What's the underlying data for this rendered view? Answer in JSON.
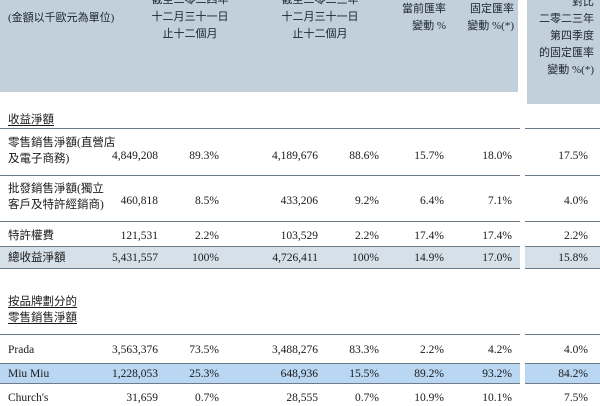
{
  "header": {
    "unit_note": "(金額以千歐元為單位)",
    "period_2024": [
      "截至二零二四年",
      "十二月三十一日",
      "止十二個月"
    ],
    "period_2023": [
      "截至二零二三年",
      "十二月三十一日",
      "止十二個月"
    ],
    "fx_current": [
      "當前匯率",
      "變動 %"
    ],
    "fx_constant": [
      "固定匯率",
      "變動 %(*)"
    ],
    "q4_constant": [
      "對比",
      "二零二三年",
      "第四季度",
      "的固定匯率",
      "變動 %(*)"
    ]
  },
  "sections": {
    "revenue_title": "收益淨額",
    "brand_title": [
      "按品牌劃分的",
      "零售銷售淨額"
    ]
  },
  "rows": [
    {
      "label": [
        "零售銷售淨額(直營店",
        "及電子商務)"
      ],
      "v2024": "4,849,208",
      "p2024": "89.3%",
      "v2023": "4,189,676",
      "p2023": "88.6%",
      "cur": "15.7%",
      "const": "18.0%",
      "q4": "17.5%"
    },
    {
      "label": [
        "批發銷售淨額(獨立",
        "客戶及特許經銷商)"
      ],
      "v2024": "460,818",
      "p2024": "8.5%",
      "v2023": "433,206",
      "p2023": "9.2%",
      "cur": "6.4%",
      "const": "7.1%",
      "q4": "4.0%"
    },
    {
      "label": [
        "特許權費"
      ],
      "v2024": "121,531",
      "p2024": "2.2%",
      "v2023": "103,529",
      "p2023": "2.2%",
      "cur": "17.4%",
      "const": "17.4%",
      "q4": "2.2%"
    },
    {
      "label": [
        "總收益淨額"
      ],
      "v2024": "5,431,557",
      "p2024": "100%",
      "v2023": "4,726,411",
      "p2023": "100%",
      "cur": "14.9%",
      "const": "17.0%",
      "q4": "15.8%"
    },
    {
      "label": [
        "Prada"
      ],
      "v2024": "3,563,376",
      "p2024": "73.5%",
      "v2023": "3,488,276",
      "p2023": "83.3%",
      "cur": "2.2%",
      "const": "4.2%",
      "q4": "4.0%"
    },
    {
      "label": [
        "Miu Miu"
      ],
      "v2024": "1,228,053",
      "p2024": "25.3%",
      "v2023": "648,936",
      "p2023": "15.5%",
      "cur": "89.2%",
      "const": "93.2%",
      "q4": "84.2%"
    },
    {
      "label": [
        "Church's"
      ],
      "v2024": "31,659",
      "p2024": "0.7%",
      "v2023": "28,555",
      "p2023": "0.7%",
      "cur": "10.9%",
      "const": "10.1%",
      "q4": "7.5%"
    }
  ],
  "colors": {
    "header_band": "#c2d0dc",
    "total_row": "#d6e0e8",
    "highlight_row": "#b9d6f2",
    "rule": "#6f7b86"
  }
}
